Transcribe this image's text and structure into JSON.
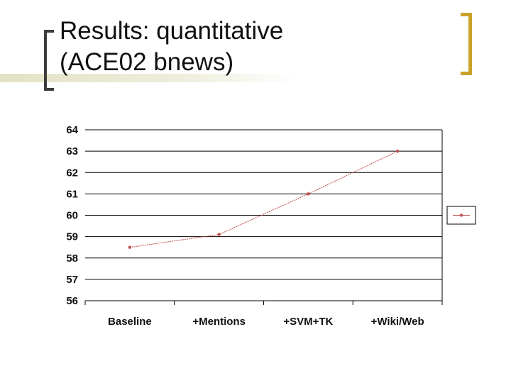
{
  "slide": {
    "title_line1": "Results: quantitative",
    "title_line2": "(ACE02 bnews)"
  },
  "colors": {
    "series": "#c0504d",
    "gridline": "#000000",
    "bracket_left": "#3d3d3d",
    "bracket_right": "#c9a22a"
  },
  "chart_data": {
    "type": "line",
    "categories": [
      "Baseline",
      "+Mentions",
      "+SVM+TK",
      "+Wiki/Web"
    ],
    "series": [
      {
        "values": [
          58.5,
          59.1,
          61.0,
          63.0
        ]
      }
    ],
    "ylim": [
      56,
      64
    ],
    "yticks": [
      "64",
      "63",
      "62",
      "61",
      "60",
      "59",
      "58",
      "57",
      "56"
    ],
    "grid": true,
    "legend": "right",
    "xlabel": "",
    "ylabel": ""
  }
}
